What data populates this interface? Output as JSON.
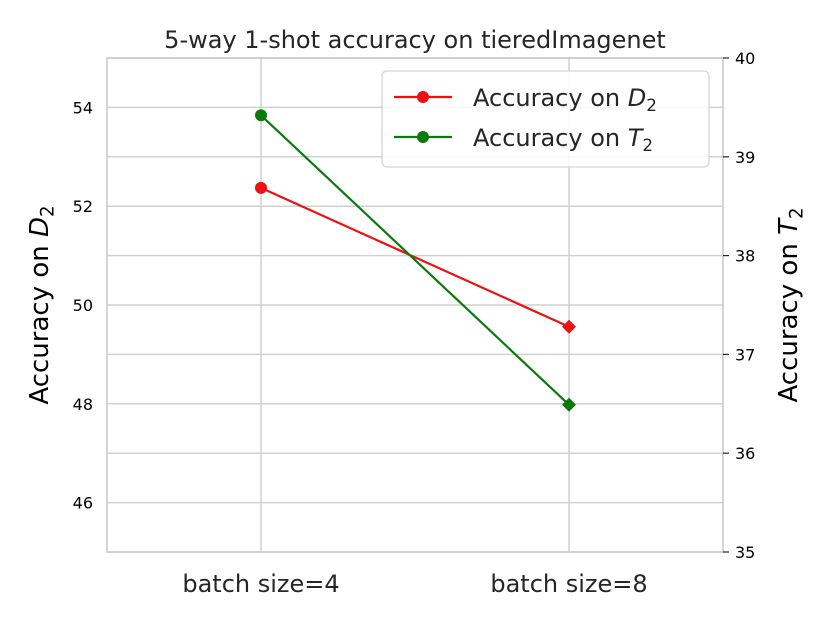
{
  "chart_data": {
    "type": "line",
    "title": "5-way 1-shot accuracy on tieredImagenet",
    "categories": [
      "batch size=4",
      "batch size=8"
    ],
    "ylabel_left": {
      "prefix": "Accuracy on ",
      "var": "D",
      "sub": "2"
    },
    "ylabel_right": {
      "prefix": "Accuracy on ",
      "var": "T",
      "sub": "2"
    },
    "ylim_left": [
      45,
      55
    ],
    "ylim_right": [
      35,
      40
    ],
    "yticks_left": [
      46,
      48,
      50,
      52,
      54
    ],
    "yticks_right": [
      35,
      36,
      37,
      38,
      39,
      40
    ],
    "grid": true,
    "legend_position": "top-right",
    "series": [
      {
        "name": {
          "prefix": "Accuracy on ",
          "var": "D",
          "sub": "2"
        },
        "axis": "left",
        "color": "#ee1111",
        "values": [
          52.37,
          49.56
        ]
      },
      {
        "name": {
          "prefix": "Accuracy on ",
          "var": "T",
          "sub": "2"
        },
        "axis": "right",
        "color": "#0a7a0a",
        "values": [
          39.42,
          36.49
        ]
      }
    ]
  }
}
